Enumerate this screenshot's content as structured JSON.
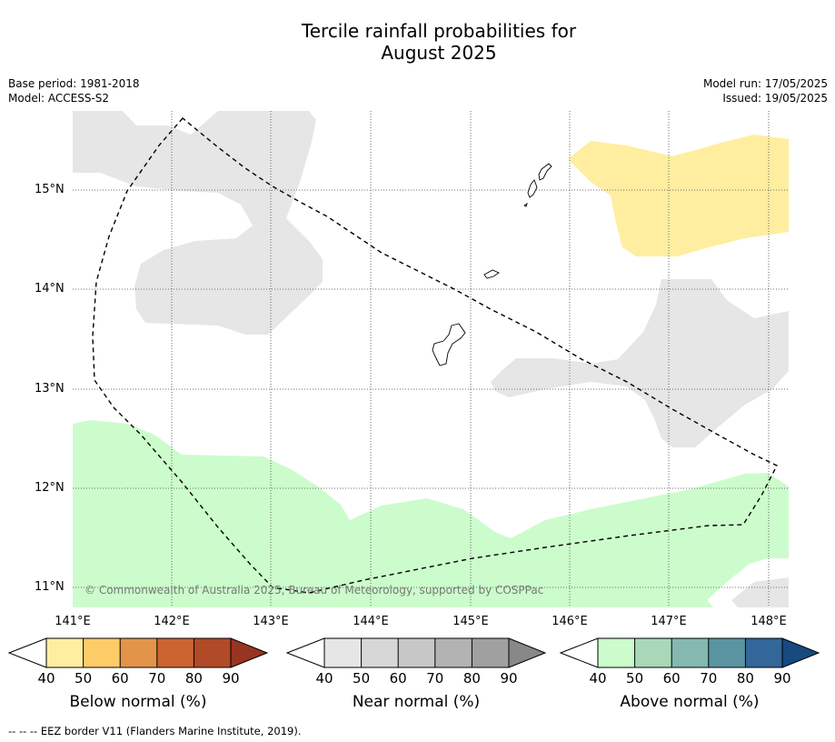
{
  "title_line1": "Tercile rainfall probabilities for",
  "title_line2": "August 2025",
  "base_period": "Base period: 1981-2018",
  "model": "Model: ACCESS-S2",
  "model_run": "Model run: 17/05/2025",
  "issued": "Issued: 19/05/2025",
  "latitudes": [
    "15°N",
    "14°N",
    "13°N",
    "12°N",
    "11°N"
  ],
  "longitudes": [
    "141°E",
    "142°E",
    "143°E",
    "144°E",
    "145°E",
    "146°E",
    "147°E",
    "148°E"
  ],
  "credit": "© Commonwealth of Australia 2025, Bureau of Meteorology, supported by COSPPac",
  "legends": [
    {
      "title": "Below normal (%)",
      "ticks": [
        "40",
        "50",
        "60",
        "70",
        "80",
        "90"
      ],
      "colors": [
        "#ffeea0",
        "#fdcc67",
        "#e29448",
        "#cc6432",
        "#b04a27",
        "#973520"
      ]
    },
    {
      "title": "Near normal (%)",
      "ticks": [
        "40",
        "50",
        "60",
        "70",
        "80",
        "90"
      ],
      "colors": [
        "#e6e6e6",
        "#d7d7d7",
        "#c7c7c7",
        "#b3b3b3",
        "#a0a0a0",
        "#888888"
      ]
    },
    {
      "title": "Above normal (%)",
      "ticks": [
        "40",
        "50",
        "60",
        "70",
        "80",
        "90"
      ],
      "colors": [
        "#ccfccc",
        "#a8d8b8",
        "#84b8b0",
        "#5a94a0",
        "#336699",
        "#164a80"
      ]
    }
  ],
  "footnote": "--  --  -- EEZ border V11 (Flanders Marine Institute, 2019)."
}
